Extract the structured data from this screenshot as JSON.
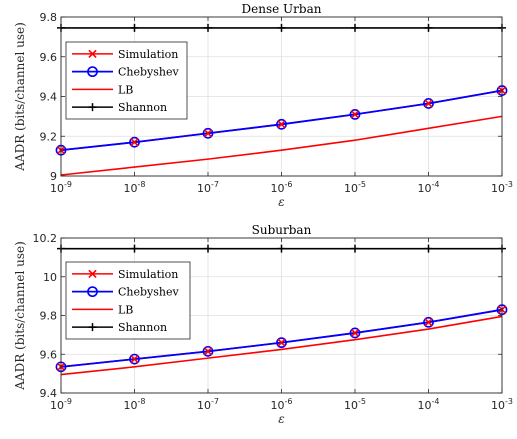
{
  "chart_data": [
    {
      "type": "line",
      "title": "Dense Urban",
      "xlabel": "ε",
      "ylabel": "AADR (bits/channel use)",
      "xscale": "log",
      "x": [
        1e-09,
        1e-08,
        1e-07,
        1e-06,
        1e-05,
        0.0001,
        0.001
      ],
      "xtick_labels": [
        {
          "base": "10",
          "exp": "-9"
        },
        {
          "base": "10",
          "exp": "-8"
        },
        {
          "base": "10",
          "exp": "-7"
        },
        {
          "base": "10",
          "exp": "-6"
        },
        {
          "base": "10",
          "exp": "-5"
        },
        {
          "base": "10",
          "exp": "-4"
        },
        {
          "base": "10",
          "exp": "-3"
        }
      ],
      "ylim": [
        9,
        9.8
      ],
      "yticks": [
        9,
        9.2,
        9.4,
        9.6,
        9.8
      ],
      "ytick_labels": [
        "9",
        "9.2",
        "9.4",
        "9.6",
        "9.8"
      ],
      "grid": true,
      "legend_position": "top-left",
      "series": [
        {
          "name": "Simulation",
          "color": "#ff0000",
          "marker": "x",
          "values": [
            9.13,
            9.17,
            9.215,
            9.26,
            9.31,
            9.365,
            9.43
          ]
        },
        {
          "name": "Chebyshev",
          "color": "#0000ff",
          "marker": "o",
          "values": [
            9.13,
            9.17,
            9.215,
            9.26,
            9.31,
            9.365,
            9.43
          ]
        },
        {
          "name": "LB",
          "color": "#ff0000",
          "marker": "none",
          "values": [
            9.005,
            9.045,
            9.085,
            9.13,
            9.18,
            9.24,
            9.3
          ]
        },
        {
          "name": "Shannon",
          "color": "#000000",
          "marker": "+",
          "values": [
            9.745,
            9.745,
            9.745,
            9.745,
            9.745,
            9.745,
            9.745
          ]
        }
      ]
    },
    {
      "type": "line",
      "title": "Suburban",
      "xlabel": "ε",
      "ylabel": "AADR (bits/channel use)",
      "xscale": "log",
      "x": [
        1e-09,
        1e-08,
        1e-07,
        1e-06,
        1e-05,
        0.0001,
        0.001
      ],
      "xtick_labels": [
        {
          "base": "10",
          "exp": "-9"
        },
        {
          "base": "10",
          "exp": "-8"
        },
        {
          "base": "10",
          "exp": "-7"
        },
        {
          "base": "10",
          "exp": "-6"
        },
        {
          "base": "10",
          "exp": "-5"
        },
        {
          "base": "10",
          "exp": "-4"
        },
        {
          "base": "10",
          "exp": "-3"
        }
      ],
      "ylim": [
        9.4,
        10.2
      ],
      "yticks": [
        9.4,
        9.6,
        9.8,
        10,
        10.2
      ],
      "ytick_labels": [
        "9.4",
        "9.6",
        "9.8",
        "10",
        "10.2"
      ],
      "grid": true,
      "legend_position": "top-left",
      "series": [
        {
          "name": "Simulation",
          "color": "#ff0000",
          "marker": "x",
          "values": [
            9.535,
            9.575,
            9.615,
            9.66,
            9.71,
            9.765,
            9.83
          ]
        },
        {
          "name": "Chebyshev",
          "color": "#0000ff",
          "marker": "o",
          "values": [
            9.535,
            9.575,
            9.615,
            9.66,
            9.71,
            9.765,
            9.83
          ]
        },
        {
          "name": "LB",
          "color": "#ff0000",
          "marker": "none",
          "values": [
            9.495,
            9.535,
            9.58,
            9.625,
            9.675,
            9.73,
            9.795
          ]
        },
        {
          "name": "Shannon",
          "color": "#000000",
          "marker": "+",
          "values": [
            10.145,
            10.145,
            10.145,
            10.145,
            10.145,
            10.145,
            10.145
          ]
        }
      ]
    }
  ]
}
